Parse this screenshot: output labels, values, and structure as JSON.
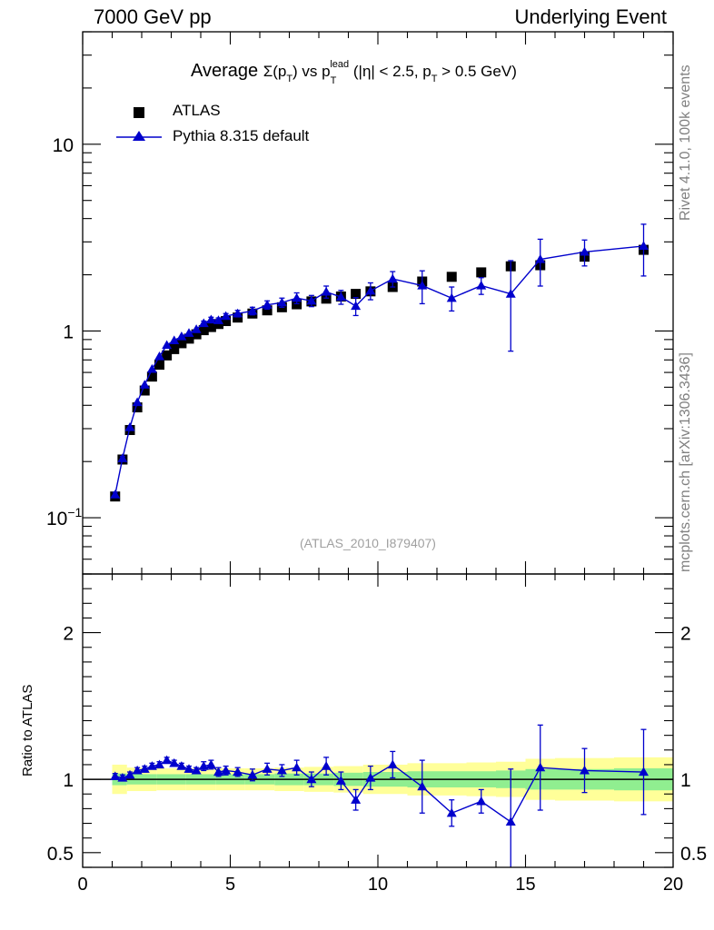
{
  "header": {
    "energy_label": "7000 GeV pp",
    "process_label": "Underlying Event"
  },
  "side_labels": {
    "rivet": "Rivet 4.1.0,  100k events",
    "mcplots": "mcplots.cern.ch [arXiv:1306.3436]"
  },
  "reference_id": "(ATLAS_2010_I879407)",
  "legend": {
    "data_label": "ATLAS",
    "mc_label": "Pythia 8.315 default"
  },
  "colors": {
    "data": "#000000",
    "mc": "#0000cc",
    "band_inner": "#90ee90",
    "band_outer": "#ffff99"
  },
  "chart_data": {
    "type": "scatter",
    "title": "Average Σ(p_T) vs p_T^lead (|η| < 2.5, p_T > 0.5 GeV)",
    "title_parts": {
      "prefix": "Average ",
      "sigma": "Σ(p",
      "sub_t": "T",
      "mid": ") vs p",
      "sup_lead": "lead",
      "suffix": " (|η| < 2.5, p",
      "suffix2": " > 0.5 GeV)"
    },
    "xlabel": "",
    "ylabel_main": "",
    "ylabel_ratio": "Ratio to ATLAS",
    "xlim": [
      0,
      20
    ],
    "ylim_main": [
      0.05,
      40
    ],
    "ylim_ratio": [
      0.4,
      2.4
    ],
    "x_ticks": [
      "0",
      "5",
      "10",
      "15",
      "20"
    ],
    "main_y_tick_labels": {
      "p1": "10",
      "p0": "1",
      "m1_base": "10",
      "m1_exp": "−1"
    },
    "ratio_y_ticks": [
      {
        "v": 0.5,
        "label": "0.5"
      },
      {
        "v": 1,
        "label": "1"
      },
      {
        "v": 2,
        "label": "2"
      }
    ],
    "series": [
      {
        "name": "ATLAS",
        "x": [
          1.1,
          1.35,
          1.6,
          1.85,
          2.1,
          2.35,
          2.6,
          2.85,
          3.1,
          3.35,
          3.6,
          3.85,
          4.1,
          4.35,
          4.6,
          4.85,
          5.25,
          5.75,
          6.25,
          6.75,
          7.25,
          7.75,
          8.25,
          8.75,
          9.25,
          9.75,
          10.5,
          11.5,
          12.5,
          13.5,
          14.5,
          15.5,
          17.0,
          19.0
        ],
        "y": [
          0.13,
          0.205,
          0.295,
          0.39,
          0.48,
          0.57,
          0.66,
          0.74,
          0.8,
          0.86,
          0.91,
          0.96,
          1.01,
          1.05,
          1.09,
          1.13,
          1.18,
          1.24,
          1.29,
          1.34,
          1.39,
          1.44,
          1.49,
          1.53,
          1.58,
          1.63,
          1.72,
          1.84,
          1.95,
          2.06,
          2.22,
          2.25,
          2.5,
          2.72
        ]
      },
      {
        "name": "Pythia 8.315 default",
        "x": [
          1.1,
          1.35,
          1.6,
          1.85,
          2.1,
          2.35,
          2.6,
          2.85,
          3.1,
          3.35,
          3.6,
          3.85,
          4.1,
          4.35,
          4.6,
          4.85,
          5.25,
          5.75,
          6.25,
          6.75,
          7.25,
          7.75,
          8.25,
          8.75,
          9.25,
          9.75,
          10.5,
          11.5,
          12.5,
          13.5,
          14.5,
          15.5,
          17.0,
          19.0
        ],
        "y": [
          0.133,
          0.208,
          0.305,
          0.415,
          0.515,
          0.625,
          0.73,
          0.84,
          0.89,
          0.935,
          0.975,
          1.02,
          1.1,
          1.15,
          1.14,
          1.2,
          1.24,
          1.28,
          1.38,
          1.42,
          1.5,
          1.45,
          1.62,
          1.52,
          1.36,
          1.64,
          1.9,
          1.75,
          1.5,
          1.75,
          1.58,
          2.42,
          2.65,
          2.85
        ],
        "err": [
          0.004,
          0.005,
          0.006,
          0.008,
          0.01,
          0.012,
          0.014,
          0.016,
          0.017,
          0.018,
          0.02,
          0.022,
          0.03,
          0.035,
          0.035,
          0.04,
          0.05,
          0.06,
          0.07,
          0.08,
          0.1,
          0.1,
          0.12,
          0.13,
          0.15,
          0.17,
          0.18,
          0.35,
          0.22,
          0.18,
          0.8,
          0.68,
          0.42,
          0.88
        ]
      }
    ],
    "ratio": {
      "x": [
        1.1,
        1.35,
        1.6,
        1.85,
        2.1,
        2.35,
        2.6,
        2.85,
        3.1,
        3.35,
        3.6,
        3.85,
        4.1,
        4.35,
        4.6,
        4.85,
        5.25,
        5.75,
        6.25,
        6.75,
        7.25,
        7.75,
        8.25,
        8.75,
        9.25,
        9.75,
        10.5,
        11.5,
        12.5,
        13.5,
        14.5,
        15.5,
        17.0,
        19.0
      ],
      "y": [
        1.02,
        1.01,
        1.03,
        1.06,
        1.07,
        1.09,
        1.1,
        1.13,
        1.11,
        1.09,
        1.07,
        1.06,
        1.09,
        1.1,
        1.05,
        1.06,
        1.05,
        1.03,
        1.07,
        1.06,
        1.08,
        1.0,
        1.09,
        0.99,
        0.86,
        1.01,
        1.1,
        0.95,
        0.77,
        0.85,
        0.71,
        1.08,
        1.06,
        1.05
      ],
      "err": [
        0.02,
        0.02,
        0.02,
        0.02,
        0.02,
        0.02,
        0.02,
        0.02,
        0.02,
        0.02,
        0.02,
        0.02,
        0.03,
        0.03,
        0.03,
        0.03,
        0.03,
        0.04,
        0.04,
        0.04,
        0.05,
        0.05,
        0.06,
        0.06,
        0.07,
        0.08,
        0.09,
        0.18,
        0.09,
        0.08,
        0.36,
        0.29,
        0.15,
        0.29
      ],
      "band_edges": [
        1.0,
        1.5,
        2.5,
        3.5,
        4.5,
        5.5,
        6.5,
        7.5,
        8.5,
        9.5,
        10.0,
        11.0,
        12.0,
        13.0,
        14.0,
        15.0,
        16.0,
        18.0,
        20.0
      ],
      "band_inner": [
        0.04,
        0.035,
        0.035,
        0.035,
        0.035,
        0.035,
        0.04,
        0.04,
        0.045,
        0.05,
        0.05,
        0.055,
        0.055,
        0.055,
        0.06,
        0.07,
        0.07,
        0.075
      ],
      "band_outer": [
        0.1,
        0.08,
        0.075,
        0.075,
        0.075,
        0.075,
        0.08,
        0.085,
        0.09,
        0.1,
        0.1,
        0.11,
        0.11,
        0.115,
        0.12,
        0.14,
        0.145,
        0.15
      ]
    }
  }
}
